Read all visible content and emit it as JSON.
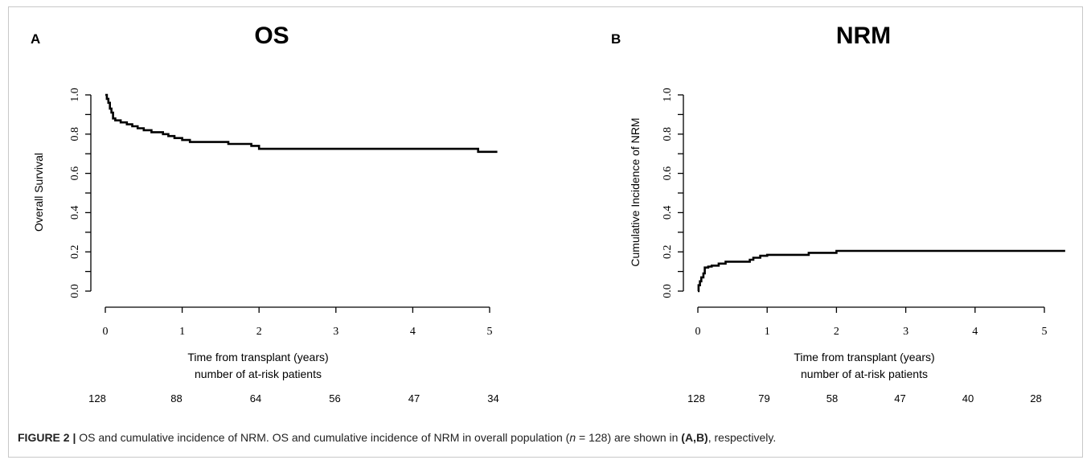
{
  "chart_data": [
    {
      "type": "line",
      "panel_label": "A",
      "title": "OS",
      "xlabel": "Time from transplant (years)",
      "ylabel": "Overall Survival",
      "xlim": [
        0,
        5.1
      ],
      "ylim": [
        0,
        1
      ],
      "x_ticks": [
        "0",
        "1",
        "2",
        "3",
        "4",
        "5"
      ],
      "y_ticks": [
        "0.0",
        "0.2",
        "0.4",
        "0.6",
        "0.8",
        "1.0"
      ],
      "risk_table_label": "number of at-risk patients",
      "risk_table": [
        "128",
        "88",
        "64",
        "56",
        "47",
        "34"
      ],
      "series": [
        {
          "x": [
            0,
            0.02,
            0.04,
            0.06,
            0.08,
            0.1,
            0.13,
            0.2,
            0.28,
            0.35,
            0.42,
            0.5,
            0.6,
            0.75,
            0.82,
            0.9,
            1.0,
            1.1,
            1.3,
            1.6,
            1.9,
            2.0,
            4.85,
            5.1
          ],
          "y": [
            1.0,
            0.98,
            0.96,
            0.93,
            0.91,
            0.88,
            0.87,
            0.86,
            0.85,
            0.84,
            0.83,
            0.82,
            0.81,
            0.8,
            0.79,
            0.78,
            0.77,
            0.76,
            0.76,
            0.75,
            0.74,
            0.725,
            0.71,
            0.71
          ]
        }
      ]
    },
    {
      "type": "line",
      "panel_label": "B",
      "title": "NRM",
      "xlabel": "Time from transplant (years)",
      "ylabel": "Cumulative Incidence of NRM",
      "xlim": [
        0,
        5.3
      ],
      "ylim": [
        0,
        1
      ],
      "x_ticks": [
        "0",
        "1",
        "2",
        "3",
        "4",
        "5"
      ],
      "y_ticks": [
        "0.0",
        "0.2",
        "0.4",
        "0.6",
        "0.8",
        "1.0"
      ],
      "risk_table_label": "number of at-risk patients",
      "risk_table": [
        "128",
        "79",
        "58",
        "47",
        "40",
        "28"
      ],
      "series": [
        {
          "x": [
            0,
            0.01,
            0.03,
            0.05,
            0.08,
            0.1,
            0.15,
            0.2,
            0.3,
            0.4,
            0.75,
            0.8,
            0.9,
            1.0,
            1.6,
            2.0,
            5.3
          ],
          "y": [
            0.0,
            0.03,
            0.05,
            0.07,
            0.09,
            0.12,
            0.125,
            0.13,
            0.14,
            0.15,
            0.16,
            0.17,
            0.18,
            0.185,
            0.195,
            0.205,
            0.205
          ]
        }
      ]
    }
  ],
  "caption": {
    "label": "FIGURE 2 |",
    "text1": " OS and cumulative incidence of NRM. OS and cumulative incidence of NRM in overall population (",
    "n_var": "n",
    "text2": " = 128) are shown in ",
    "panels": "(A,B)",
    "text3": ", respectively."
  }
}
